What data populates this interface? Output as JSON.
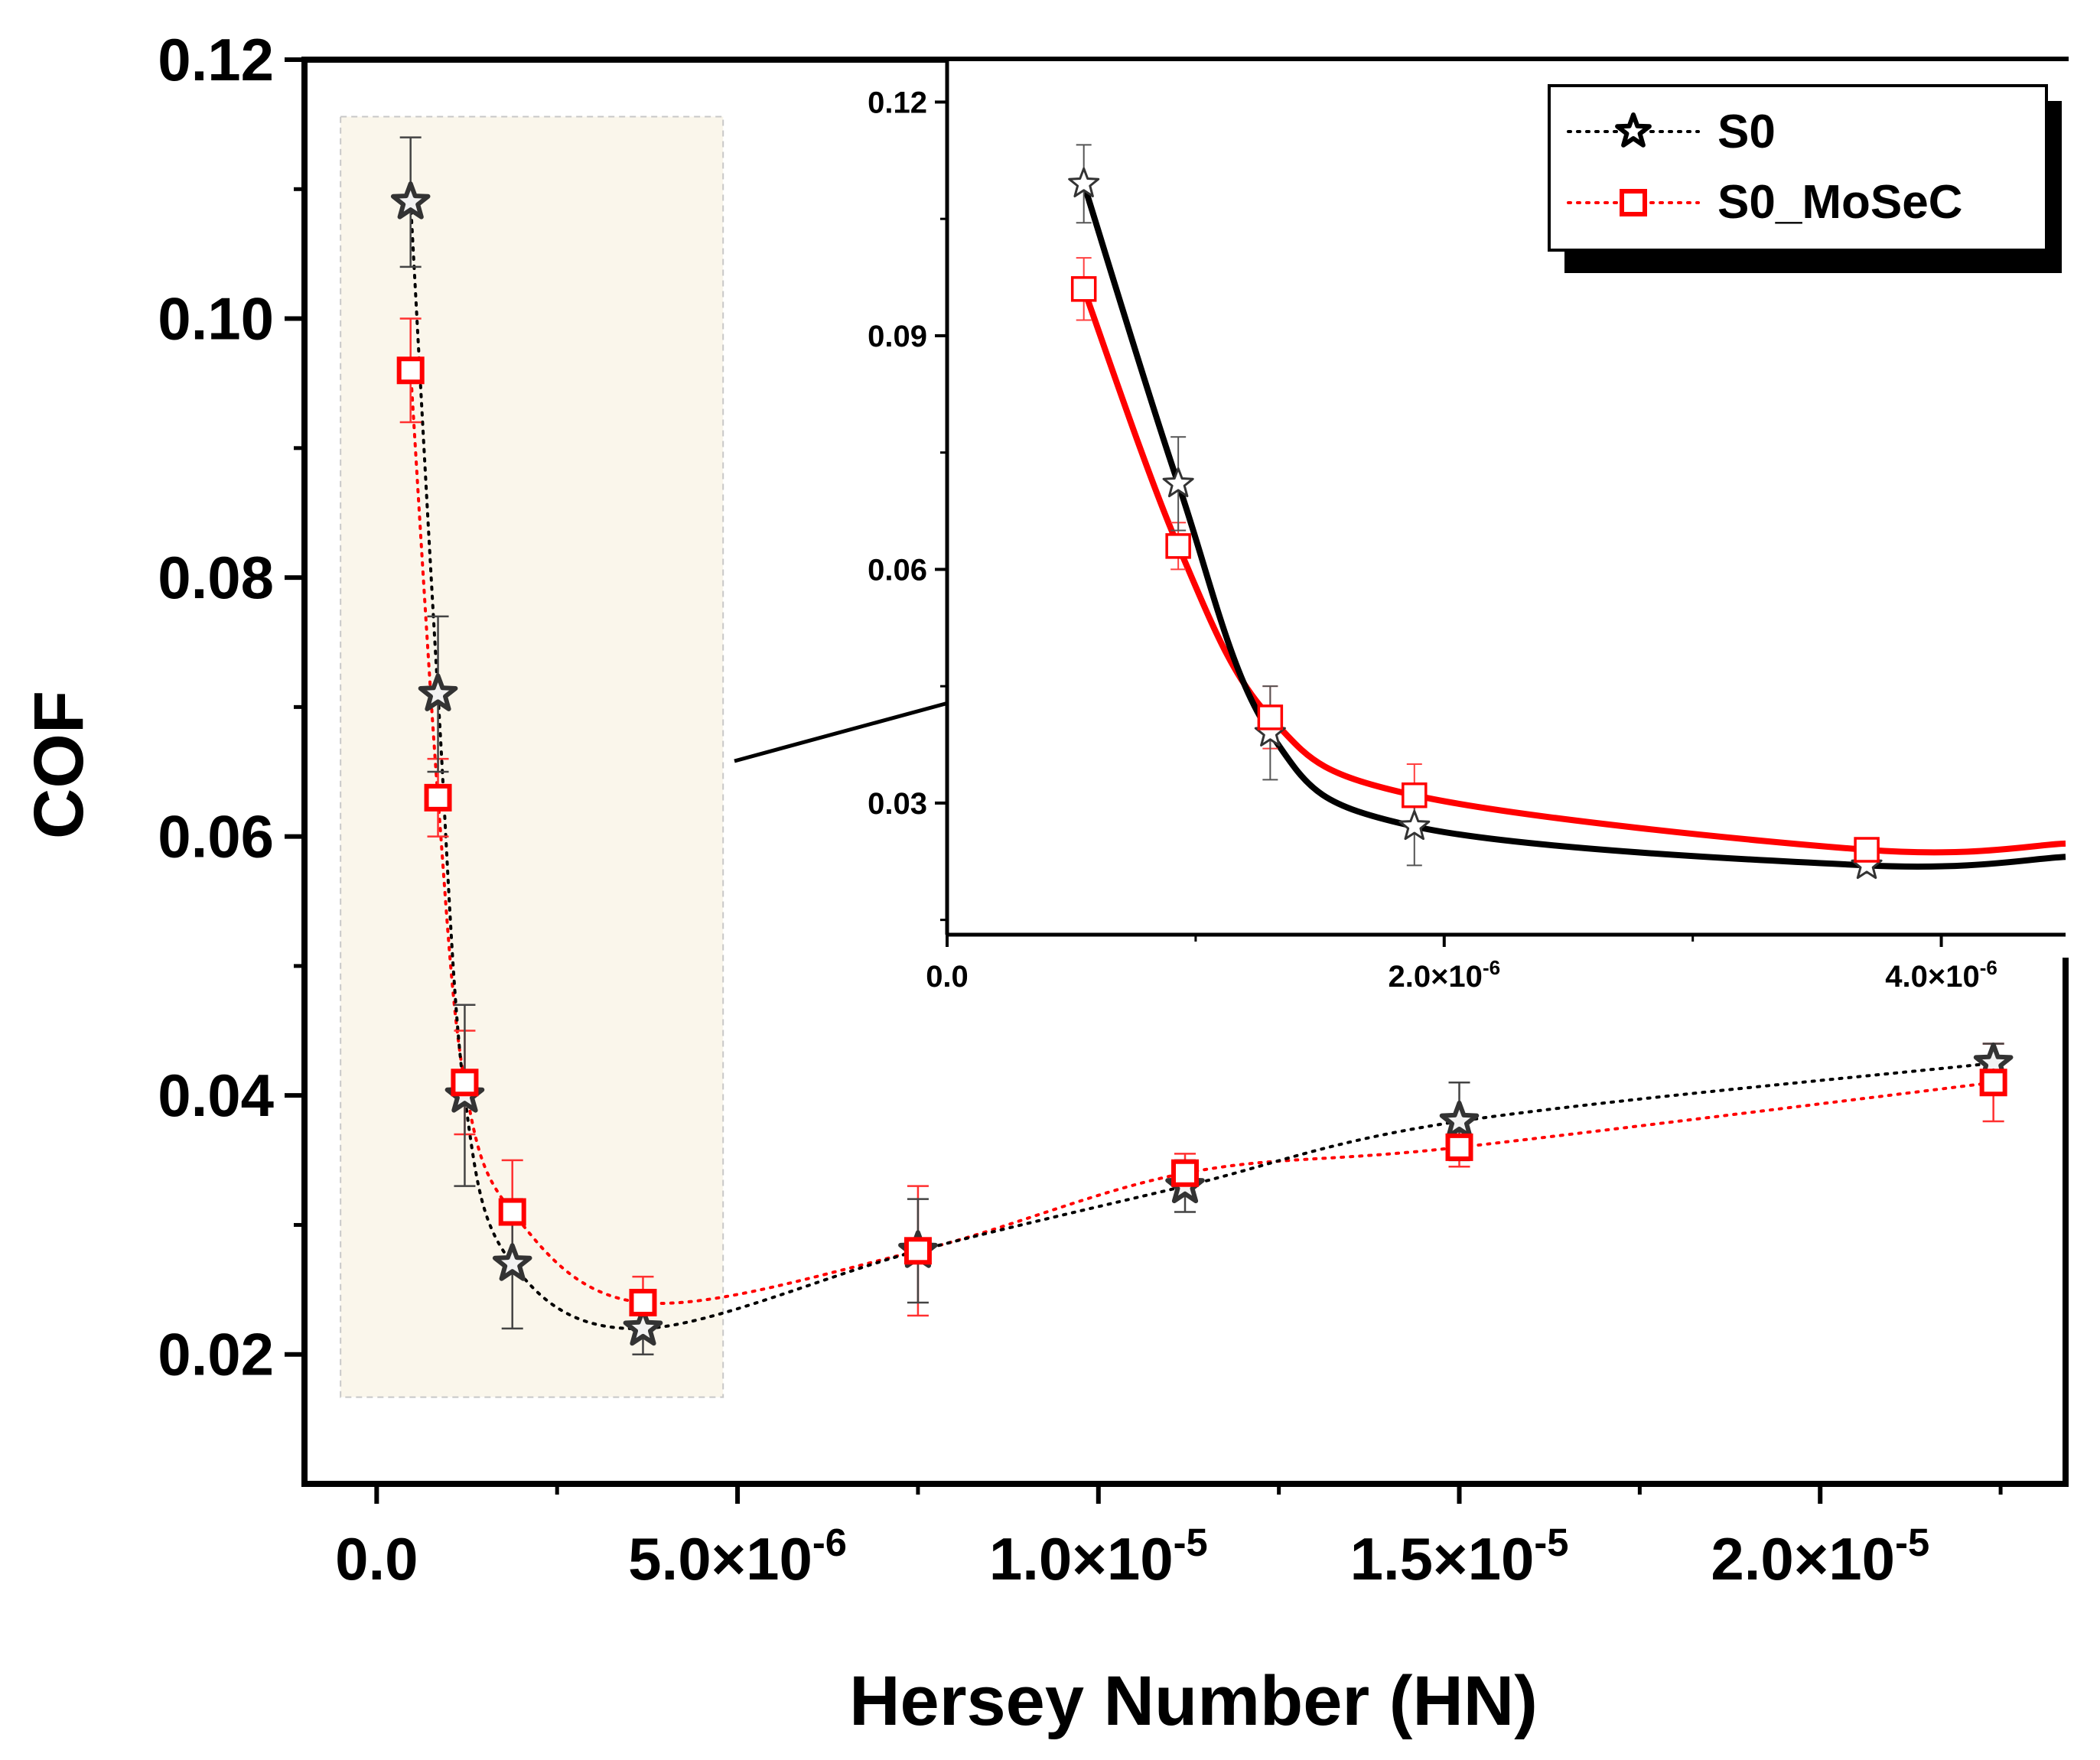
{
  "chart_data": [
    {
      "type": "line",
      "title": "",
      "xlabel": "Hersey Number (HN)",
      "ylabel": "COF",
      "xlim": [
        -1e-06,
        2.34e-05
      ],
      "ylim": [
        0.01,
        0.12
      ],
      "x_ticks": [
        0,
        5e-06,
        1e-05,
        1.5e-05,
        2e-05
      ],
      "x_tick_labels": [
        {
          "mant": "0.0",
          "exp": ""
        },
        {
          "mant": "5.0×10",
          "exp": "-6"
        },
        {
          "mant": "1.0×10",
          "exp": "-5"
        },
        {
          "mant": "1.5×10",
          "exp": "-5"
        },
        {
          "mant": "2.0×10",
          "exp": "-5"
        }
      ],
      "y_ticks": [
        0.02,
        0.04,
        0.06,
        0.08,
        0.1,
        0.12
      ],
      "y_tick_labels": [
        "0.02",
        "0.04",
        "0.06",
        "0.08",
        "0.10",
        "0.12"
      ],
      "highlight_region": {
        "x": [
          -5e-07,
          4.8e-06
        ],
        "y": [
          0.0167,
          0.1156
        ]
      },
      "series": [
        {
          "name": "S0",
          "color": "#000000",
          "marker": "star",
          "line_style": "dotted",
          "x": [
            4.7e-07,
            8.5e-07,
            1.22e-06,
            1.88e-06,
            3.69e-06,
            7.5e-06,
            1.12e-05,
            1.5e-05,
            2.24e-05
          ],
          "y": [
            0.109,
            0.071,
            0.04,
            0.027,
            0.022,
            0.028,
            0.033,
            0.038,
            0.0425
          ],
          "err": [
            0.005,
            0.006,
            0.007,
            0.005,
            0.002,
            0.004,
            0.002,
            0.003,
            0.0015
          ]
        },
        {
          "name": "S0_MoSeC",
          "color": "#ff0000",
          "marker": "square",
          "line_style": "dotted",
          "x": [
            4.7e-07,
            8.5e-07,
            1.22e-06,
            1.88e-06,
            3.69e-06,
            7.5e-06,
            1.12e-05,
            1.5e-05,
            2.24e-05
          ],
          "y": [
            0.096,
            0.063,
            0.041,
            0.031,
            0.024,
            0.028,
            0.034,
            0.036,
            0.041
          ],
          "err": [
            0.004,
            0.003,
            0.004,
            0.004,
            0.002,
            0.005,
            0.0015,
            0.0015,
            0.003
          ]
        }
      ]
    },
    {
      "type": "line",
      "title": "",
      "xlim": [
        0,
        4.5e-06
      ],
      "ylim": [
        0.0131,
        0.1223
      ],
      "x_ticks": [
        0,
        2e-06,
        4e-06
      ],
      "x_tick_labels": [
        {
          "mant": "0.0",
          "exp": ""
        },
        {
          "mant": "2.0×10",
          "exp": "-6"
        },
        {
          "mant": "4.0×10",
          "exp": "-6"
        }
      ],
      "y_ticks": [
        0.03,
        0.06,
        0.09,
        0.12
      ],
      "y_tick_labels": [
        "0.03",
        "0.06",
        "0.09",
        "0.12"
      ],
      "series": [
        {
          "name": "S0",
          "color": "#000000",
          "marker": "star-open",
          "line_style": "solid",
          "x": [
            5.5e-07,
            9.3e-07,
            1.3e-06,
            1.88e-06,
            3.7e-06
          ],
          "y": [
            0.1095,
            0.071,
            0.039,
            0.027,
            0.022
          ],
          "err": [
            0.005,
            0.006,
            0.006,
            0.005,
            0.001
          ],
          "curve_end_y": 0.0231
        },
        {
          "name": "S0_MoSeC",
          "color": "#ff0000",
          "marker": "square-open",
          "line_style": "solid",
          "x": [
            5.5e-07,
            9.3e-07,
            1.3e-06,
            1.88e-06,
            3.7e-06
          ],
          "y": [
            0.096,
            0.063,
            0.041,
            0.031,
            0.024
          ],
          "err": [
            0.004,
            0.003,
            0.004,
            0.004,
            0.001
          ],
          "curve_end_y": 0.0248
        }
      ]
    }
  ],
  "legend": {
    "items": [
      {
        "label": "S0",
        "color": "#000000",
        "marker": "star"
      },
      {
        "label": "S0_MoSeC",
        "color": "#ff0000",
        "marker": "square"
      }
    ]
  }
}
